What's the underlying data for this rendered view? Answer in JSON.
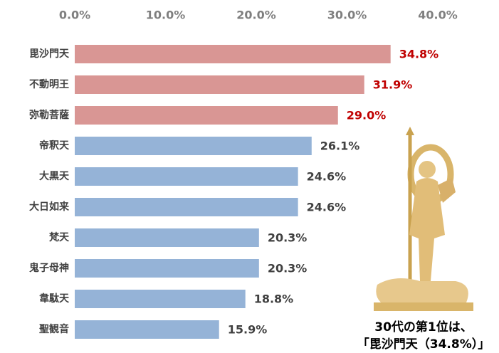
{
  "chart_data": {
    "type": "hbar",
    "categories": [
      "毘沙門天",
      "不動明王",
      "弥勒菩薩",
      "帝釈天",
      "大黒天",
      "大日如来",
      "梵天",
      "鬼子母神",
      "韋駄天",
      "聖観音"
    ],
    "values": [
      34.8,
      31.9,
      29.0,
      26.1,
      24.6,
      24.6,
      20.3,
      20.3,
      18.8,
      15.9
    ],
    "value_labels": [
      "34.8%",
      "31.9%",
      "29.0%",
      "26.1%",
      "24.6%",
      "24.6%",
      "20.3%",
      "20.3%",
      "18.8%",
      "15.9%"
    ],
    "colors": [
      "#d99694",
      "#d99694",
      "#d99694",
      "#95b3d7",
      "#95b3d7",
      "#95b3d7",
      "#95b3d7",
      "#95b3d7",
      "#95b3d7",
      "#95b3d7"
    ],
    "value_label_colors": [
      "#c00000",
      "#c00000",
      "#c00000",
      "#404040",
      "#404040",
      "#404040",
      "#404040",
      "#404040",
      "#404040",
      "#404040"
    ],
    "xlim": [
      0,
      40
    ],
    "xticks": [
      {
        "value": 0,
        "label": "0.0%"
      },
      {
        "value": 10,
        "label": "10.0%"
      },
      {
        "value": 20,
        "label": "20.0%"
      },
      {
        "value": 30,
        "label": "30.0%"
      },
      {
        "value": 40,
        "label": "40.0%"
      }
    ],
    "grid": false,
    "annotations": [
      "30代の第1位は、",
      "「毘沙門天（34.8%）」"
    ]
  }
}
